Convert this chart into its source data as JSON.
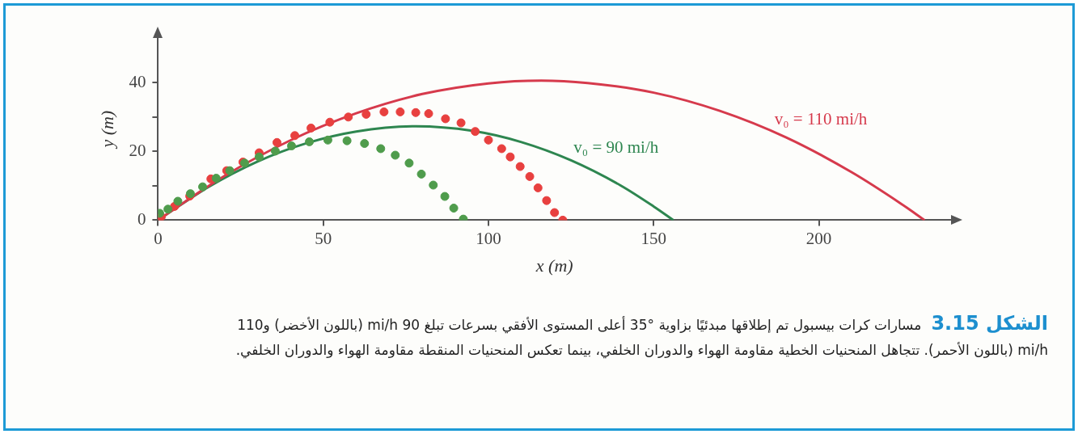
{
  "chart_data": {
    "type": "line",
    "xlabel": "x (m)",
    "ylabel": "y (m)",
    "xlim": [
      0,
      240
    ],
    "ylim": [
      0,
      53
    ],
    "xticks": [
      0,
      50,
      100,
      150,
      200
    ],
    "yticks": [
      0,
      {
        "value": 10,
        "label": null
      },
      20,
      {
        "value": 30,
        "label": null
      },
      40
    ],
    "grid": false,
    "legend": false,
    "series": [
      {
        "name": "v₀ = 110 mi/h",
        "color": "#d63a4c",
        "x": [
          0,
          20,
          40,
          60,
          80,
          100,
          116,
          130,
          150,
          170,
          190,
          210,
          225,
          232
        ],
        "values": [
          0,
          12.8,
          23.2,
          31.1,
          36.7,
          39.8,
          40.6,
          39.9,
          37.1,
          31.8,
          24.1,
          13.9,
          4.7,
          0
        ]
      },
      {
        "name": "v₀ = 90 mi/h",
        "color": "#2e8650",
        "x": [
          0,
          15,
          30,
          45,
          60,
          78,
          95,
          110,
          125,
          140,
          150,
          156
        ],
        "values": [
          0,
          9.5,
          17.0,
          22.4,
          25.8,
          27.3,
          26.0,
          22.7,
          17.4,
          10.1,
          4.0,
          0
        ]
      },
      {
        "type": "scatter",
        "marker": "circle",
        "color": "#e8403f",
        "x": [
          1,
          5,
          9.6,
          16,
          20.8,
          25.7,
          30.6,
          36,
          41.4,
          46.3,
          52,
          57.6,
          63,
          68.4,
          73.3,
          78,
          81.9,
          87,
          91.7,
          96,
          100,
          104,
          106.6,
          109.6,
          112.5,
          115,
          117.6,
          120,
          122.5
        ],
        "values": [
          1,
          4,
          7,
          12,
          14.4,
          16.9,
          19.6,
          22.6,
          24.6,
          26.8,
          28.5,
          30,
          30.8,
          31.5,
          31.5,
          31.3,
          31,
          29.5,
          28.3,
          25.8,
          23.3,
          20.8,
          18.4,
          15.6,
          12.7,
          9.4,
          5.7,
          2.2,
          0
        ]
      },
      {
        "type": "scatter",
        "marker": "circle",
        "color": "#4f9c4c",
        "x": [
          0.5,
          3,
          6,
          9.8,
          13.5,
          17.6,
          21.7,
          26.2,
          30.6,
          35.5,
          40.4,
          45.8,
          51.4,
          57.2,
          62.5,
          67.4,
          71.8,
          76,
          79.7,
          83.3,
          86.8,
          89.5,
          92.4
        ],
        "values": [
          2,
          3.2,
          5.5,
          7.7,
          9.7,
          12.2,
          14.4,
          16.6,
          18.4,
          20.1,
          21.6,
          22.8,
          23.3,
          23.1,
          22.3,
          20.8,
          18.9,
          16.6,
          13.4,
          10.2,
          6.9,
          3.5,
          0.3
        ]
      }
    ],
    "annotations": [
      "الشكل 3.15",
      "مسارات كرات بيسبول تم إطلاقها مبدئيًا بزاوية °35 أعلى المستوى الأفقي بسرعات تبلغ 90 mi/h (باللون الأخضر) و110 mi/h (باللون الأحمر). تتجاهل المنحنيات الخطية مقاومة الهواء والدوران الخلفي، بينما تعكس المنحنيات المنقطة مقاومة الهواء والدوران الخلفي."
    ]
  }
}
